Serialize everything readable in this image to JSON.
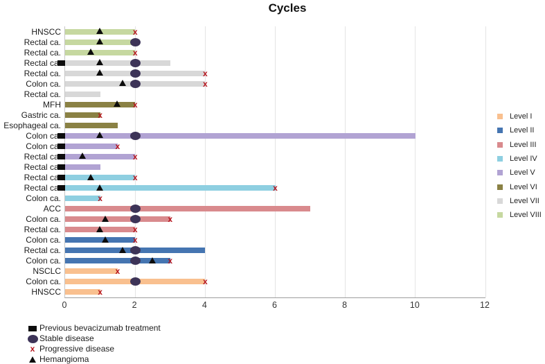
{
  "title": "Cycles",
  "colors": {
    "stable_disease": "#3d3458",
    "progressive_disease": "#b5121b",
    "black_marker": "#0c0c0c",
    "gridline": "#e4e4e4",
    "axis": "#9d9d9d"
  },
  "levels": [
    {
      "name": "Level I",
      "color": "#f9c08f"
    },
    {
      "name": "Level II",
      "color": "#4575b1"
    },
    {
      "name": "Level III",
      "color": "#d98a8d"
    },
    {
      "name": "Level IV",
      "color": "#8ecfe1"
    },
    {
      "name": "Level V",
      "color": "#b1a3d3"
    },
    {
      "name": "Level VI",
      "color": "#8a8144"
    },
    {
      "name": "Level VII",
      "color": "#d8d8d8"
    },
    {
      "name": "Level VIII",
      "color": "#c6d8a0"
    }
  ],
  "marker_legend": [
    {
      "symbol": "square",
      "label": "Previous bevacizumab treatment"
    },
    {
      "symbol": "ellipse",
      "label": "Stable disease"
    },
    {
      "symbol": "x",
      "label": "Progressive disease"
    },
    {
      "symbol": "triangle",
      "label": "Hemangioma"
    }
  ],
  "chart_data": {
    "type": "bar",
    "orientation": "horizontal",
    "title": "Cycles",
    "xlabel": "",
    "ylabel": "",
    "xlim": [
      0,
      12
    ],
    "xticks": [
      0,
      2,
      4,
      6,
      8,
      10,
      12
    ],
    "grid": true,
    "legend_position": "right",
    "rows": [
      {
        "label": "HNSCC",
        "level": "Level VIII",
        "cycles": 2,
        "previous_bevacizumab": false,
        "hemangioma": 1,
        "stable_disease": null,
        "progressive_disease": 2
      },
      {
        "label": "Rectal ca.",
        "level": "Level VIII",
        "cycles": 2,
        "previous_bevacizumab": false,
        "hemangioma": 1,
        "stable_disease": 2,
        "progressive_disease": null
      },
      {
        "label": "Rectal ca.",
        "level": "Level VIII",
        "cycles": 2,
        "previous_bevacizumab": false,
        "hemangioma": 0.75,
        "stable_disease": null,
        "progressive_disease": 2
      },
      {
        "label": "Rectal ca.",
        "level": "Level VII",
        "cycles": 3,
        "previous_bevacizumab": true,
        "hemangioma": 1,
        "stable_disease": 2,
        "progressive_disease": null
      },
      {
        "label": "Rectal ca.",
        "level": "Level VII",
        "cycles": 4,
        "previous_bevacizumab": false,
        "hemangioma": 1,
        "stable_disease": 2,
        "progressive_disease": 4
      },
      {
        "label": "Colon ca.",
        "level": "Level VII",
        "cycles": 4,
        "previous_bevacizumab": false,
        "hemangioma": 1.65,
        "stable_disease": 2,
        "progressive_disease": 4
      },
      {
        "label": "Rectal ca.",
        "level": "Level VII",
        "cycles": 1,
        "previous_bevacizumab": false,
        "hemangioma": null,
        "stable_disease": null,
        "progressive_disease": null
      },
      {
        "label": "MFH",
        "level": "Level VI",
        "cycles": 2,
        "previous_bevacizumab": false,
        "hemangioma": 1.5,
        "stable_disease": null,
        "progressive_disease": 2
      },
      {
        "label": "Gastric ca.",
        "level": "Level VI",
        "cycles": 1,
        "previous_bevacizumab": false,
        "hemangioma": null,
        "stable_disease": null,
        "progressive_disease": 1
      },
      {
        "label": "Esophageal ca.",
        "level": "Level VI",
        "cycles": 1.5,
        "previous_bevacizumab": false,
        "hemangioma": null,
        "stable_disease": null,
        "progressive_disease": null
      },
      {
        "label": "Colon ca.",
        "level": "Level V",
        "cycles": 10,
        "previous_bevacizumab": true,
        "hemangioma": 1,
        "stable_disease": 2,
        "progressive_disease": null
      },
      {
        "label": "Colon ca.",
        "level": "Level V",
        "cycles": 1.5,
        "previous_bevacizumab": true,
        "hemangioma": null,
        "stable_disease": null,
        "progressive_disease": 1.5
      },
      {
        "label": "Rectal ca.",
        "level": "Level V",
        "cycles": 2,
        "previous_bevacizumab": true,
        "hemangioma": 0.5,
        "stable_disease": null,
        "progressive_disease": 2
      },
      {
        "label": "Rectal ca.",
        "level": "Level V",
        "cycles": 1,
        "previous_bevacizumab": true,
        "hemangioma": null,
        "stable_disease": null,
        "progressive_disease": null
      },
      {
        "label": "Rectal ca.",
        "level": "Level IV",
        "cycles": 2,
        "previous_bevacizumab": true,
        "hemangioma": 0.75,
        "stable_disease": null,
        "progressive_disease": 2
      },
      {
        "label": "Rectal ca.",
        "level": "Level IV",
        "cycles": 6,
        "previous_bevacizumab": true,
        "hemangioma": 1,
        "stable_disease": null,
        "progressive_disease": 6
      },
      {
        "label": "Colon ca.",
        "level": "Level IV",
        "cycles": 1,
        "previous_bevacizumab": false,
        "hemangioma": null,
        "stable_disease": null,
        "progressive_disease": 1
      },
      {
        "label": "ACC",
        "level": "Level III",
        "cycles": 7,
        "previous_bevacizumab": false,
        "hemangioma": null,
        "stable_disease": 2,
        "progressive_disease": null
      },
      {
        "label": "Colon ca.",
        "level": "Level III",
        "cycles": 3,
        "previous_bevacizumab": false,
        "hemangioma": 1.15,
        "stable_disease": 2,
        "progressive_disease": 3
      },
      {
        "label": "Rectal ca.",
        "level": "Level III",
        "cycles": 2,
        "previous_bevacizumab": false,
        "hemangioma": 1,
        "stable_disease": null,
        "progressive_disease": 2
      },
      {
        "label": "Colon ca.",
        "level": "Level II",
        "cycles": 2,
        "previous_bevacizumab": false,
        "hemangioma": 1.15,
        "stable_disease": null,
        "progressive_disease": 2
      },
      {
        "label": "Rectal ca.",
        "level": "Level II",
        "cycles": 4,
        "previous_bevacizumab": false,
        "hemangioma": 1.65,
        "stable_disease": 2,
        "progressive_disease": null
      },
      {
        "label": "Colon ca.",
        "level": "Level II",
        "cycles": 3,
        "previous_bevacizumab": false,
        "hemangioma": 2.5,
        "stable_disease": 2,
        "progressive_disease": 3
      },
      {
        "label": "NSCLC",
        "level": "Level I",
        "cycles": 1.5,
        "previous_bevacizumab": false,
        "hemangioma": null,
        "stable_disease": null,
        "progressive_disease": 1.5
      },
      {
        "label": "Colon ca.",
        "level": "Level I",
        "cycles": 4,
        "previous_bevacizumab": false,
        "hemangioma": null,
        "stable_disease": 2,
        "progressive_disease": 4
      },
      {
        "label": "HNSCC",
        "level": "Level I",
        "cycles": 1,
        "previous_bevacizumab": false,
        "hemangioma": null,
        "stable_disease": null,
        "progressive_disease": 1
      }
    ]
  }
}
